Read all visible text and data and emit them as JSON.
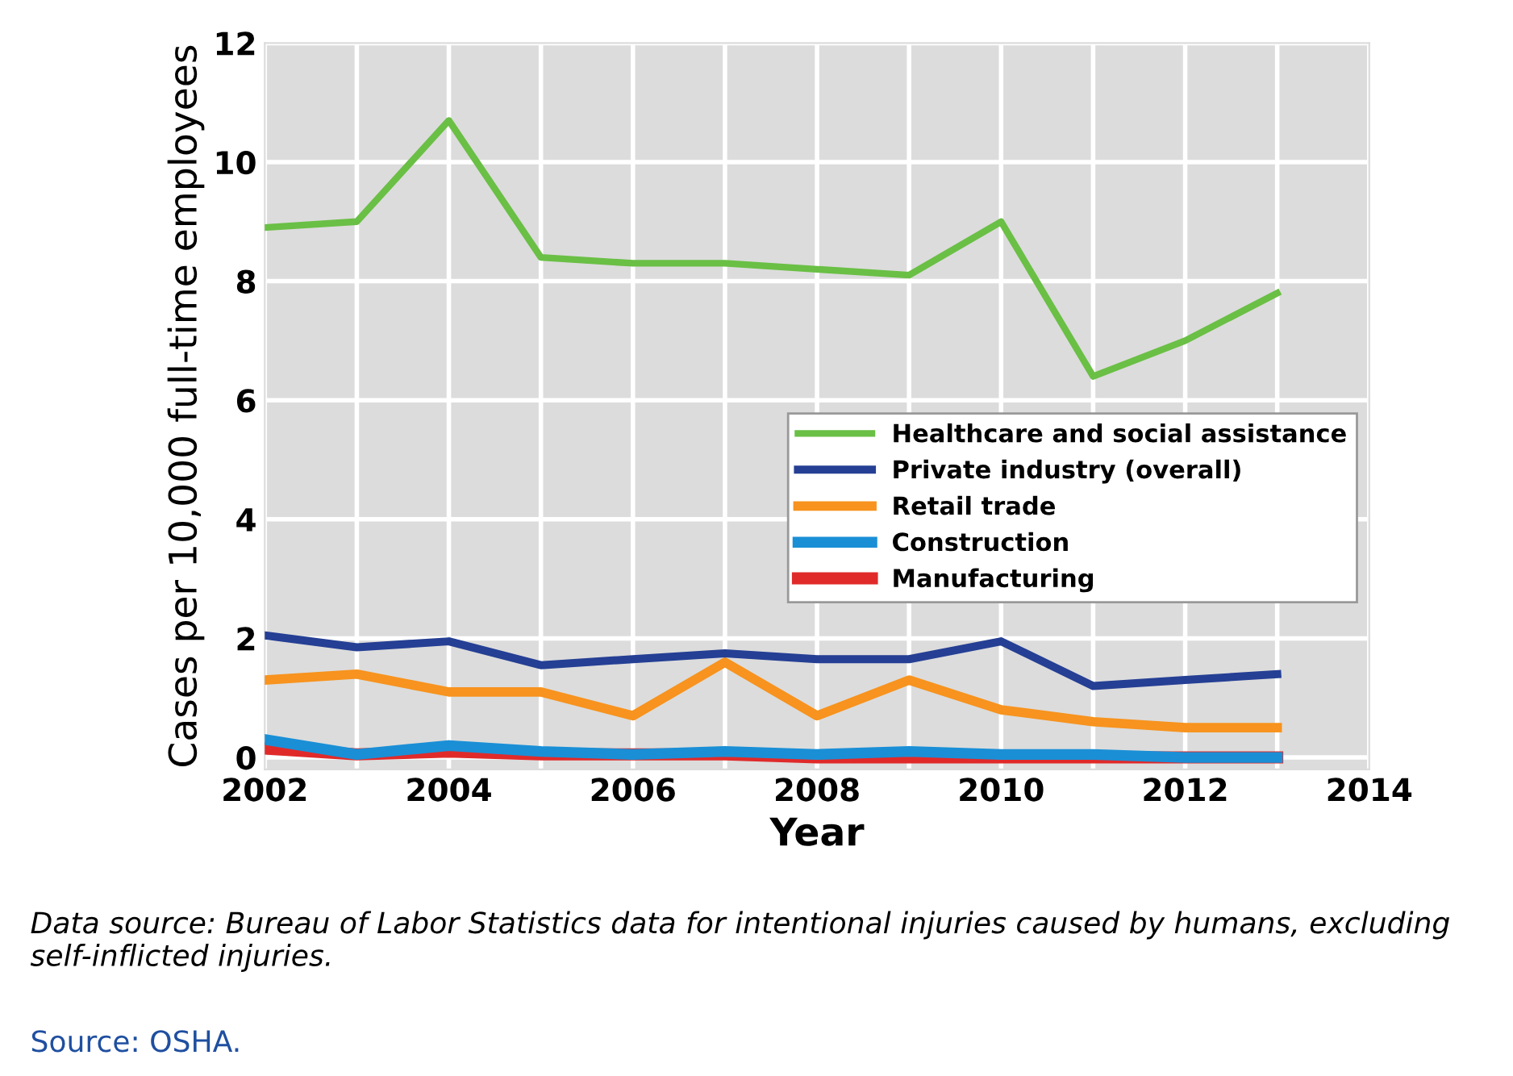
{
  "chart_data": {
    "type": "line",
    "xlabel": "Year",
    "ylabel": "Cases per 10,000 full-time employees",
    "x": [
      2002,
      2003,
      2004,
      2005,
      2006,
      2007,
      2008,
      2009,
      2010,
      2011,
      2012,
      2013
    ],
    "series": [
      {
        "name": "Healthcare and social assistance",
        "color": "#6abf45",
        "values": [
          8.9,
          9.0,
          10.7,
          8.4,
          8.3,
          8.3,
          8.2,
          8.1,
          9.0,
          6.4,
          7.0,
          7.8
        ]
      },
      {
        "name": "Private industry (overall)",
        "color": "#253f94",
        "values": [
          2.05,
          1.85,
          1.95,
          1.55,
          1.65,
          1.75,
          1.65,
          1.65,
          1.95,
          1.2,
          1.3,
          1.4
        ]
      },
      {
        "name": "Retail trade",
        "color": "#f7931e",
        "values": [
          1.3,
          1.4,
          1.1,
          1.1,
          0.7,
          1.6,
          0.7,
          1.3,
          0.8,
          0.6,
          0.5,
          0.5
        ]
      },
      {
        "name": "Construction",
        "color": "#1a8fd6",
        "values": [
          0.3,
          0.05,
          0.2,
          0.1,
          0.05,
          0.1,
          0.05,
          0.1,
          0.05,
          0.05,
          0,
          0
        ]
      },
      {
        "name": "Manufacturing",
        "color": "#e02a2a",
        "values": [
          0.15,
          0.05,
          0.1,
          0.05,
          0.05,
          0.05,
          0,
          0,
          0,
          0,
          0,
          0
        ]
      }
    ],
    "xlim": [
      2002,
      2014
    ],
    "ylim": [
      -0.2,
      12
    ],
    "xticks": [
      2002,
      {
        "value": 2003,
        "label": null
      },
      2004,
      {
        "value": 2005,
        "label": null
      },
      2006,
      {
        "value": 2007,
        "label": null
      },
      2008,
      {
        "value": 2009,
        "label": null
      },
      2010,
      {
        "value": 2011,
        "label": null
      },
      2012,
      {
        "value": 2013,
        "label": null
      },
      2014
    ],
    "yticks": [
      0,
      2,
      4,
      6,
      8,
      10,
      12
    ],
    "grid": true,
    "legend": "right",
    "marker": "none",
    "line_style": "solid",
    "annotations": [
      "Data source: Bureau of Labor Statistics data for intentional injuries caused by humans, excluding self-inflicted injuries.",
      "Source: OSHA."
    ]
  }
}
